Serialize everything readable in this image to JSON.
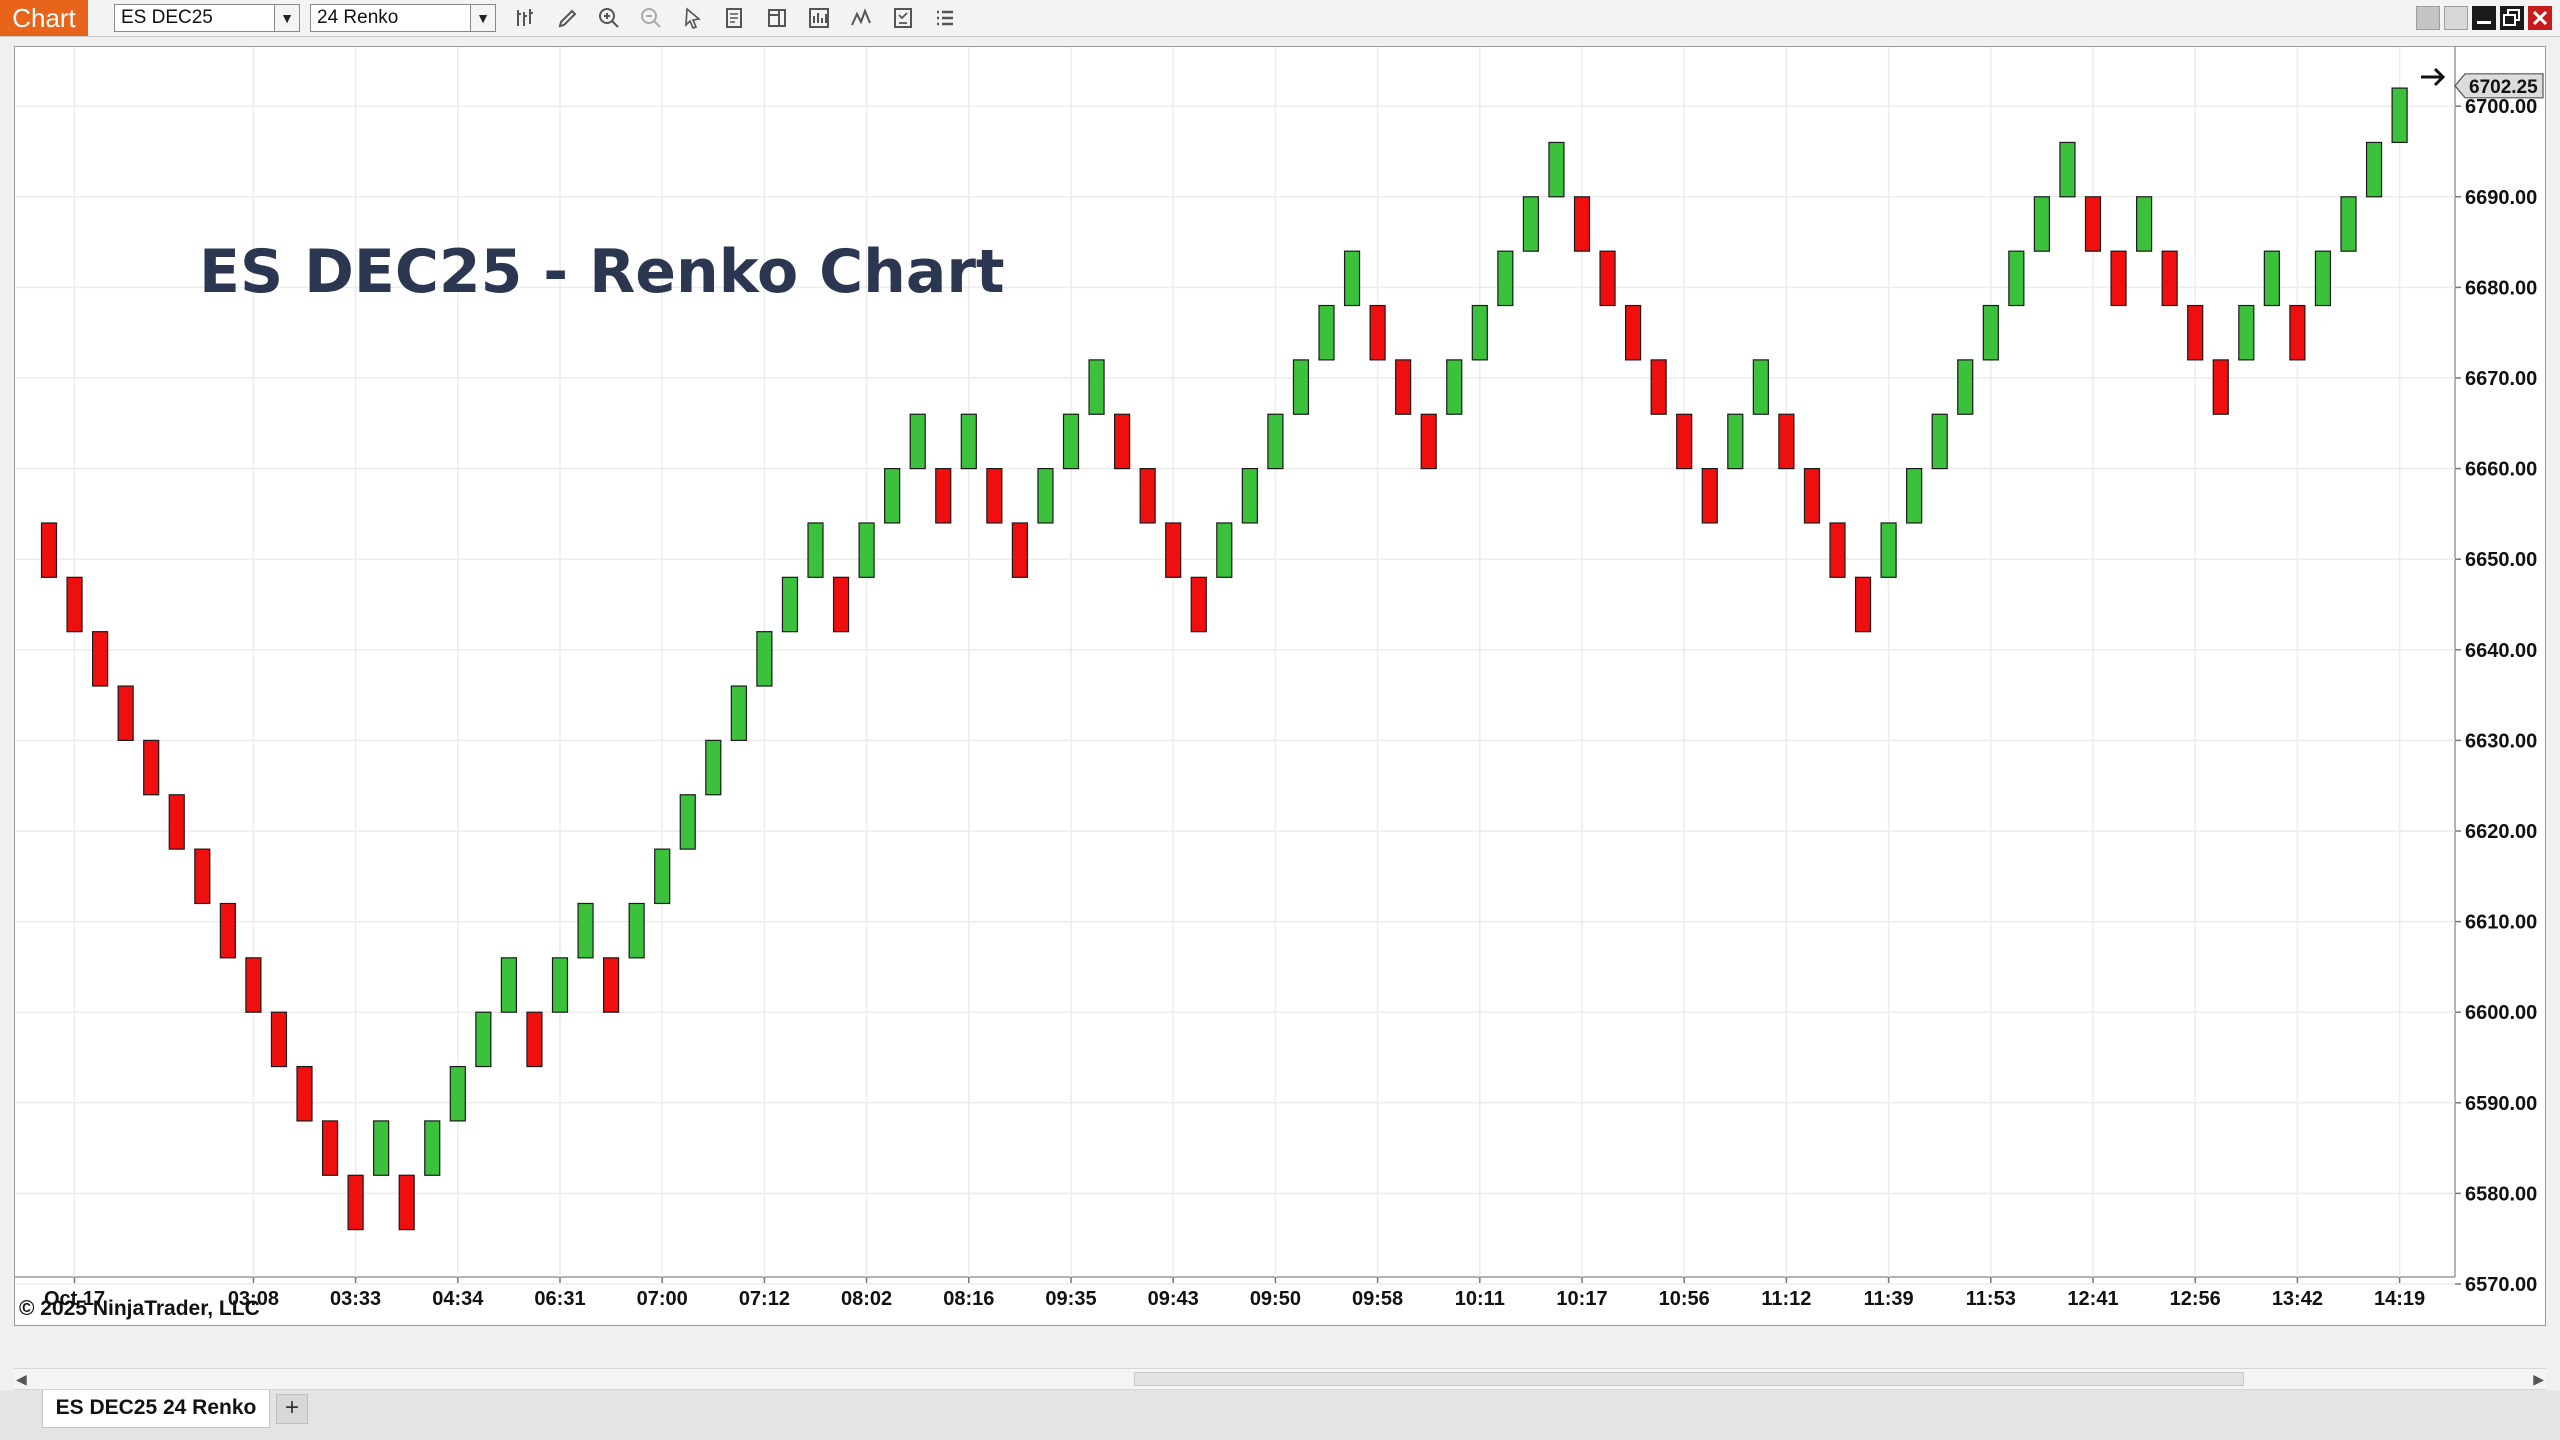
{
  "window": {
    "tag": "Chart",
    "instrument": "ES DEC25",
    "bar_type": "24 Renko"
  },
  "toolbar_icons": [
    "bar-type-icon",
    "drawing-tool-icon",
    "zoom-in-icon",
    "zoom-out-icon",
    "pointer-icon",
    "data-box-icon",
    "chart-trader-icon",
    "strategies-icon",
    "indicators-icon",
    "templates-icon",
    "properties-icon"
  ],
  "chart": {
    "title": "ES DEC25 - Renko Chart",
    "copyright": "© 2025 NinjaTrader, LLC",
    "last_price_label": "6702.25"
  },
  "tab": {
    "label": "ES DEC25 24 Renko",
    "add_label": "+"
  },
  "colors": {
    "up": "#3cc13c",
    "down": "#ef0f0f",
    "accent": "#e8641a",
    "title": "#2b3650"
  },
  "chart_data": {
    "type": "renko",
    "brick_size_ticks": 24,
    "brick_size_points": 6,
    "y_ticks": [
      "6570.00",
      "6580.00",
      "6590.00",
      "6600.00",
      "6610.00",
      "6620.00",
      "6630.00",
      "6640.00",
      "6650.00",
      "6660.00",
      "6670.00",
      "6680.00",
      "6690.00",
      "6700.00"
    ],
    "ylim": [
      6567,
      6712
    ],
    "x_labels": [
      "Oct 17",
      "03:08",
      "03:33",
      "04:34",
      "06:31",
      "07:00",
      "07:12",
      "08:02",
      "08:16",
      "09:35",
      "09:43",
      "09:50",
      "09:58",
      "10:11",
      "10:17",
      "10:56",
      "11:12",
      "11:39",
      "11:53",
      "12:41",
      "12:56",
      "13:42",
      "14:19"
    ],
    "bricks": [
      {
        "dir": "down",
        "open": 6654,
        "close": 6648
      },
      {
        "dir": "down",
        "open": 6648,
        "close": 6642
      },
      {
        "dir": "down",
        "open": 6642,
        "close": 6636
      },
      {
        "dir": "down",
        "open": 6636,
        "close": 6630
      },
      {
        "dir": "down",
        "open": 6630,
        "close": 6624
      },
      {
        "dir": "down",
        "open": 6624,
        "close": 6618
      },
      {
        "dir": "down",
        "open": 6618,
        "close": 6612
      },
      {
        "dir": "down",
        "open": 6612,
        "close": 6606
      },
      {
        "dir": "down",
        "open": 6606,
        "close": 6600
      },
      {
        "dir": "down",
        "open": 6600,
        "close": 6594
      },
      {
        "dir": "down",
        "open": 6594,
        "close": 6588
      },
      {
        "dir": "down",
        "open": 6588,
        "close": 6582
      },
      {
        "dir": "down",
        "open": 6582,
        "close": 6576
      },
      {
        "dir": "up",
        "open": 6582,
        "close": 6588
      },
      {
        "dir": "down",
        "open": 6582,
        "close": 6576
      },
      {
        "dir": "up",
        "open": 6582,
        "close": 6588
      },
      {
        "dir": "up",
        "open": 6588,
        "close": 6594
      },
      {
        "dir": "up",
        "open": 6594,
        "close": 6600
      },
      {
        "dir": "up",
        "open": 6600,
        "close": 6606
      },
      {
        "dir": "down",
        "open": 6600,
        "close": 6594
      },
      {
        "dir": "up",
        "open": 6600,
        "close": 6606
      },
      {
        "dir": "up",
        "open": 6606,
        "close": 6612
      },
      {
        "dir": "down",
        "open": 6606,
        "close": 6600
      },
      {
        "dir": "up",
        "open": 6606,
        "close": 6612
      },
      {
        "dir": "up",
        "open": 6612,
        "close": 6618
      },
      {
        "dir": "up",
        "open": 6618,
        "close": 6624
      },
      {
        "dir": "up",
        "open": 6624,
        "close": 6630
      },
      {
        "dir": "up",
        "open": 6630,
        "close": 6636
      },
      {
        "dir": "up",
        "open": 6636,
        "close": 6642
      },
      {
        "dir": "up",
        "open": 6642,
        "close": 6648
      },
      {
        "dir": "up",
        "open": 6648,
        "close": 6654
      },
      {
        "dir": "down",
        "open": 6648,
        "close": 6642
      },
      {
        "dir": "up",
        "open": 6648,
        "close": 6654
      },
      {
        "dir": "up",
        "open": 6654,
        "close": 6660
      },
      {
        "dir": "up",
        "open": 6660,
        "close": 6666
      },
      {
        "dir": "down",
        "open": 6660,
        "close": 6654
      },
      {
        "dir": "up",
        "open": 6660,
        "close": 6666
      },
      {
        "dir": "down",
        "open": 6660,
        "close": 6654
      },
      {
        "dir": "down",
        "open": 6654,
        "close": 6648
      },
      {
        "dir": "up",
        "open": 6654,
        "close": 6660
      },
      {
        "dir": "up",
        "open": 6660,
        "close": 6666
      },
      {
        "dir": "up",
        "open": 6666,
        "close": 6672
      },
      {
        "dir": "down",
        "open": 6666,
        "close": 6660
      },
      {
        "dir": "down",
        "open": 6660,
        "close": 6654
      },
      {
        "dir": "down",
        "open": 6654,
        "close": 6648
      },
      {
        "dir": "down",
        "open": 6648,
        "close": 6642
      },
      {
        "dir": "up",
        "open": 6648,
        "close": 6654
      },
      {
        "dir": "up",
        "open": 6654,
        "close": 6660
      },
      {
        "dir": "up",
        "open": 6660,
        "close": 6666
      },
      {
        "dir": "up",
        "open": 6666,
        "close": 6672
      },
      {
        "dir": "up",
        "open": 6672,
        "close": 6678
      },
      {
        "dir": "up",
        "open": 6678,
        "close": 6684
      },
      {
        "dir": "down",
        "open": 6678,
        "close": 6672
      },
      {
        "dir": "down",
        "open": 6672,
        "close": 6666
      },
      {
        "dir": "down",
        "open": 6666,
        "close": 6660
      },
      {
        "dir": "up",
        "open": 6666,
        "close": 6672
      },
      {
        "dir": "up",
        "open": 6672,
        "close": 6678
      },
      {
        "dir": "up",
        "open": 6678,
        "close": 6684
      },
      {
        "dir": "up",
        "open": 6684,
        "close": 6690
      },
      {
        "dir": "up",
        "open": 6690,
        "close": 6696
      },
      {
        "dir": "down",
        "open": 6690,
        "close": 6684
      },
      {
        "dir": "down",
        "open": 6684,
        "close": 6678
      },
      {
        "dir": "down",
        "open": 6678,
        "close": 6672
      },
      {
        "dir": "down",
        "open": 6672,
        "close": 6666
      },
      {
        "dir": "down",
        "open": 6666,
        "close": 6660
      },
      {
        "dir": "down",
        "open": 6660,
        "close": 6654
      },
      {
        "dir": "up",
        "open": 6660,
        "close": 6666
      },
      {
        "dir": "up",
        "open": 6666,
        "close": 6672
      },
      {
        "dir": "down",
        "open": 6666,
        "close": 6660
      },
      {
        "dir": "down",
        "open": 6660,
        "close": 6654
      },
      {
        "dir": "down",
        "open": 6654,
        "close": 6648
      },
      {
        "dir": "down",
        "open": 6648,
        "close": 6642
      },
      {
        "dir": "up",
        "open": 6648,
        "close": 6654
      },
      {
        "dir": "up",
        "open": 6654,
        "close": 6660
      },
      {
        "dir": "up",
        "open": 6660,
        "close": 6666
      },
      {
        "dir": "up",
        "open": 6666,
        "close": 6672
      },
      {
        "dir": "up",
        "open": 6672,
        "close": 6678
      },
      {
        "dir": "up",
        "open": 6678,
        "close": 6684
      },
      {
        "dir": "up",
        "open": 6684,
        "close": 6690
      },
      {
        "dir": "up",
        "open": 6690,
        "close": 6696
      },
      {
        "dir": "down",
        "open": 6690,
        "close": 6684
      },
      {
        "dir": "down",
        "open": 6684,
        "close": 6678
      },
      {
        "dir": "up",
        "open": 6684,
        "close": 6690
      },
      {
        "dir": "down",
        "open": 6684,
        "close": 6678
      },
      {
        "dir": "down",
        "open": 6678,
        "close": 6672
      },
      {
        "dir": "down",
        "open": 6672,
        "close": 6666
      },
      {
        "dir": "up",
        "open": 6672,
        "close": 6678
      },
      {
        "dir": "up",
        "open": 6678,
        "close": 6684
      },
      {
        "dir": "down",
        "open": 6678,
        "close": 6672
      },
      {
        "dir": "up",
        "open": 6678,
        "close": 6684
      },
      {
        "dir": "up",
        "open": 6684,
        "close": 6690
      },
      {
        "dir": "up",
        "open": 6690,
        "close": 6696
      },
      {
        "dir": "up",
        "open": 6696,
        "close": 6702
      }
    ]
  }
}
